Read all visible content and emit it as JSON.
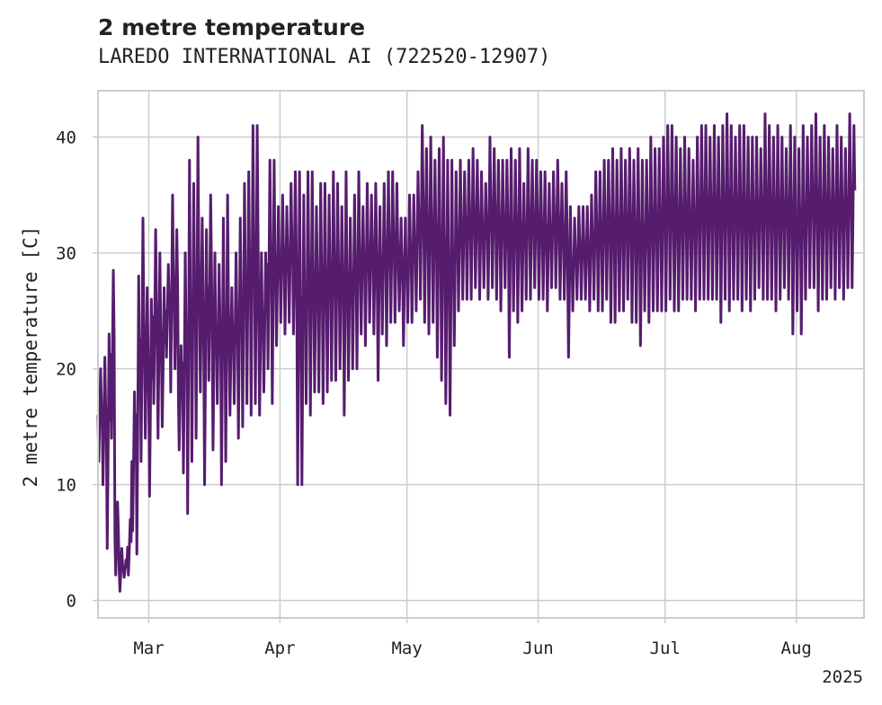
{
  "chart_data": {
    "type": "line",
    "title": "2 metre temperature",
    "subtitle": "LAREDO INTERNATIONAL AI (722520-12907)",
    "ylabel": "2 metre temperature [C]",
    "xlabel": "",
    "year_label": "2025",
    "x_range": [
      "2025-02-17",
      "2025-08-16"
    ],
    "ylim": [
      -1.5,
      44
    ],
    "y_ticks": [
      0,
      10,
      20,
      30,
      40
    ],
    "x_ticks": [
      {
        "date": "2025-03-01",
        "label": "Mar"
      },
      {
        "date": "2025-04-01",
        "label": "Apr"
      },
      {
        "date": "2025-05-01",
        "label": "May"
      },
      {
        "date": "2025-06-01",
        "label": "Jun"
      },
      {
        "date": "2025-07-01",
        "label": "Jul"
      },
      {
        "date": "2025-08-01",
        "label": "Aug"
      }
    ],
    "grid": true,
    "line_color": "#561c6e",
    "series": [
      {
        "name": "",
        "x": [
          "2025-02-17",
          "2025-02-18",
          "2025-02-19",
          "2025-02-20",
          "2025-02-21",
          "2025-02-22",
          "2025-02-23",
          "2025-02-24",
          "2025-02-25",
          "2025-02-26",
          "2025-02-27",
          "2025-02-28",
          "2025-03-01",
          "2025-03-02",
          "2025-03-03",
          "2025-03-04",
          "2025-03-05",
          "2025-03-06",
          "2025-03-07",
          "2025-03-08",
          "2025-03-09",
          "2025-03-10",
          "2025-03-11",
          "2025-03-12",
          "2025-03-13",
          "2025-03-14",
          "2025-03-15",
          "2025-03-16",
          "2025-03-17",
          "2025-03-18",
          "2025-03-19",
          "2025-03-20",
          "2025-03-21",
          "2025-03-22",
          "2025-03-23",
          "2025-03-24",
          "2025-03-25",
          "2025-03-26",
          "2025-03-27",
          "2025-03-28",
          "2025-03-29",
          "2025-03-30",
          "2025-03-31",
          "2025-04-01",
          "2025-04-02",
          "2025-04-03",
          "2025-04-04",
          "2025-04-05",
          "2025-04-06",
          "2025-04-07",
          "2025-04-08",
          "2025-04-09",
          "2025-04-10",
          "2025-04-11",
          "2025-04-12",
          "2025-04-13",
          "2025-04-14",
          "2025-04-15",
          "2025-04-16",
          "2025-04-17",
          "2025-04-18",
          "2025-04-19",
          "2025-04-20",
          "2025-04-21",
          "2025-04-22",
          "2025-04-23",
          "2025-04-24",
          "2025-04-25",
          "2025-04-26",
          "2025-04-27",
          "2025-04-28",
          "2025-04-29",
          "2025-04-30",
          "2025-05-01",
          "2025-05-02",
          "2025-05-03",
          "2025-05-04",
          "2025-05-05",
          "2025-05-06",
          "2025-05-07",
          "2025-05-08",
          "2025-05-09",
          "2025-05-10",
          "2025-05-11",
          "2025-05-12",
          "2025-05-13",
          "2025-05-14",
          "2025-05-15",
          "2025-05-16",
          "2025-05-17",
          "2025-05-18",
          "2025-05-19",
          "2025-05-20",
          "2025-05-21",
          "2025-05-22",
          "2025-05-23",
          "2025-05-24",
          "2025-05-25",
          "2025-05-26",
          "2025-05-27",
          "2025-05-28",
          "2025-05-29",
          "2025-05-30",
          "2025-05-31",
          "2025-06-01",
          "2025-06-02",
          "2025-06-03",
          "2025-06-04",
          "2025-06-05",
          "2025-06-06",
          "2025-06-07",
          "2025-06-08",
          "2025-06-09",
          "2025-06-10",
          "2025-06-11",
          "2025-06-12",
          "2025-06-13",
          "2025-06-14",
          "2025-06-15",
          "2025-06-16",
          "2025-06-17",
          "2025-06-18",
          "2025-06-19",
          "2025-06-20",
          "2025-06-21",
          "2025-06-22",
          "2025-06-23",
          "2025-06-24",
          "2025-06-25",
          "2025-06-26",
          "2025-06-27",
          "2025-06-28",
          "2025-06-29",
          "2025-06-30",
          "2025-07-01",
          "2025-07-02",
          "2025-07-03",
          "2025-07-04",
          "2025-07-05",
          "2025-07-06",
          "2025-07-07",
          "2025-07-08",
          "2025-07-09",
          "2025-07-10",
          "2025-07-11",
          "2025-07-12",
          "2025-07-13",
          "2025-07-14",
          "2025-07-15",
          "2025-07-16",
          "2025-07-17",
          "2025-07-18",
          "2025-07-19",
          "2025-07-20",
          "2025-07-21",
          "2025-07-22",
          "2025-07-23",
          "2025-07-24",
          "2025-07-25",
          "2025-07-26",
          "2025-07-27",
          "2025-07-28",
          "2025-07-29",
          "2025-07-30",
          "2025-07-31",
          "2025-08-01",
          "2025-08-02",
          "2025-08-03",
          "2025-08-04",
          "2025-08-05",
          "2025-08-06",
          "2025-08-07",
          "2025-08-08",
          "2025-08-09",
          "2025-08-10",
          "2025-08-11",
          "2025-08-12",
          "2025-08-13",
          "2025-08-14",
          "2025-08-15",
          "2025-08-16"
        ],
        "min": [
          12,
          10,
          4.5,
          14,
          2.2,
          0.8,
          2.0,
          2.2,
          6.0,
          4.0,
          12,
          14,
          9,
          17,
          14,
          15,
          21,
          18,
          20,
          13,
          11,
          7.5,
          12,
          14,
          18,
          10,
          19,
          13,
          17,
          10,
          12,
          16,
          17,
          14,
          15,
          17,
          16,
          17,
          16,
          18,
          20,
          17,
          22,
          24,
          23,
          24,
          23,
          10,
          10,
          17,
          16,
          18,
          18,
          17,
          18,
          19,
          19,
          20,
          16,
          19,
          20,
          20,
          23,
          22,
          24,
          23,
          19,
          23,
          22,
          24,
          24,
          25,
          22,
          24,
          24,
          25,
          26,
          24,
          23,
          24,
          21,
          19,
          17,
          16,
          22,
          25,
          26,
          26,
          26,
          27,
          26,
          27,
          26,
          27,
          26,
          25,
          27,
          21,
          25,
          24,
          25,
          26,
          26,
          27,
          26,
          26,
          25,
          27,
          27,
          26,
          26,
          21,
          25,
          26,
          26,
          26,
          25,
          26,
          25,
          25,
          26,
          24,
          24,
          25,
          25,
          26,
          24,
          24,
          22,
          25,
          24,
          25,
          25,
          25,
          25,
          26,
          25,
          25,
          26,
          26,
          26,
          25,
          26,
          26,
          26,
          26,
          26,
          24,
          26,
          25,
          26,
          26,
          25,
          26,
          25,
          26,
          27,
          26,
          26,
          26,
          25,
          26,
          27,
          26,
          23,
          25,
          23,
          26,
          27,
          27,
          25,
          26,
          26,
          27,
          26,
          27,
          26,
          27,
          27
        ],
        "max": [
          20,
          21,
          23,
          28.5,
          8.5,
          4.5,
          3.5,
          7.0,
          18,
          28,
          33,
          27,
          26,
          32,
          30,
          27,
          29,
          35,
          32,
          22,
          30,
          38,
          36,
          40,
          33,
          32,
          35,
          30,
          29,
          33,
          35,
          27,
          30,
          33,
          36,
          37,
          41,
          41,
          30,
          30,
          38,
          38,
          34,
          35,
          34,
          36,
          37,
          37,
          35,
          37,
          37,
          34,
          36,
          36,
          35,
          37,
          36,
          34,
          37,
          33,
          35,
          37,
          34,
          36,
          35,
          36,
          34,
          36,
          37,
          37,
          36,
          33,
          33,
          35,
          35,
          37,
          41,
          39,
          40,
          38,
          39,
          40,
          38,
          38,
          37,
          38,
          37,
          38,
          39,
          38,
          37,
          36,
          40,
          39,
          38,
          38,
          38,
          39,
          38,
          39,
          36,
          39,
          38,
          38,
          37,
          37,
          36,
          37,
          38,
          36,
          37,
          34,
          33,
          34,
          34,
          34,
          35,
          37,
          37,
          38,
          38,
          39,
          38,
          39,
          38,
          39,
          38,
          39,
          38,
          38,
          40,
          39,
          39,
          40,
          41,
          41,
          40,
          39,
          40,
          39,
          38,
          40,
          41,
          41,
          40,
          41,
          40,
          41,
          42,
          41,
          40,
          41,
          41,
          40,
          40,
          40,
          39,
          42,
          41,
          40,
          41,
          40,
          39,
          41,
          40,
          39,
          41,
          40,
          41,
          42,
          40,
          41,
          40,
          39,
          41,
          40,
          39,
          42,
          41
        ]
      }
    ]
  }
}
